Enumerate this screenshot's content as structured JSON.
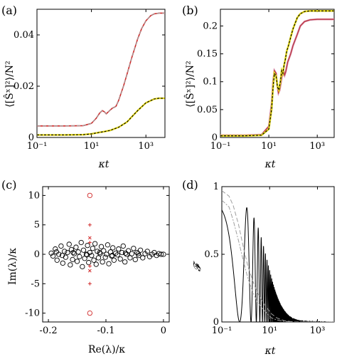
{
  "colors": {
    "red": "#d12a2a",
    "yellow": "#e3d81a",
    "black": "#000000",
    "gray": "#9e9e9e",
    "pink": "#e58aa0",
    "blue": "#5a86c9"
  },
  "chart_data": [
    {
      "id": "a",
      "type": "line",
      "panel_label": "(a)",
      "xlabel": "κt",
      "ylabel": "⟨[Ŝˣ]²⟩/N²",
      "xscale": "log",
      "xlim": [
        0.1,
        5000
      ],
      "ylim": [
        0,
        0.05
      ],
      "xticks": [
        0.1,
        10,
        1000
      ],
      "xtick_labels": [
        "10⁻¹",
        "10¹",
        "10³"
      ],
      "yticks": [
        0,
        0.02,
        0.04
      ],
      "ytick_labels": [
        "0",
        "0.02",
        "0.04"
      ],
      "series": [
        {
          "color": "red",
          "width": 1.6,
          "x": [
            0.1,
            1,
            5,
            10,
            15,
            20,
            25,
            30,
            35,
            40,
            50,
            60,
            70,
            80,
            100,
            150,
            200,
            300,
            500,
            700,
            1000,
            1500,
            2000,
            3000,
            5000
          ],
          "y": [
            0.0045,
            0.0045,
            0.0046,
            0.0055,
            0.0075,
            0.0095,
            0.0105,
            0.01,
            0.0092,
            0.0098,
            0.0108,
            0.0115,
            0.0118,
            0.0122,
            0.0145,
            0.02,
            0.0245,
            0.031,
            0.0385,
            0.0425,
            0.0455,
            0.0475,
            0.0482,
            0.0485,
            0.0485
          ]
        },
        {
          "color": "gray",
          "width": 1.1,
          "dash": "5,3",
          "x": [
            0.1,
            1,
            5,
            10,
            15,
            20,
            25,
            30,
            35,
            40,
            50,
            60,
            70,
            80,
            100,
            150,
            200,
            300,
            500,
            700,
            1000,
            1500,
            2000,
            3000,
            5000
          ],
          "y": [
            0.0045,
            0.0045,
            0.0046,
            0.0055,
            0.0075,
            0.0095,
            0.0105,
            0.01,
            0.0092,
            0.0098,
            0.0108,
            0.0115,
            0.0118,
            0.0122,
            0.0145,
            0.02,
            0.0245,
            0.031,
            0.0385,
            0.0425,
            0.0455,
            0.0475,
            0.0482,
            0.0485,
            0.0485
          ]
        },
        {
          "color": "yellow",
          "width": 2.4,
          "x": [
            0.1,
            1,
            5,
            10,
            20,
            30,
            50,
            100,
            200,
            300,
            500,
            1000,
            2000,
            3000,
            5000
          ],
          "y": [
            0.001,
            0.001,
            0.0011,
            0.0014,
            0.002,
            0.0023,
            0.0028,
            0.004,
            0.006,
            0.008,
            0.0105,
            0.0135,
            0.015,
            0.0153,
            0.0153
          ]
        },
        {
          "color": "black",
          "width": 1.1,
          "dash": "3,2",
          "x": [
            0.1,
            1,
            5,
            10,
            20,
            30,
            50,
            100,
            200,
            300,
            500,
            1000,
            2000,
            3000,
            5000
          ],
          "y": [
            0.001,
            0.001,
            0.0011,
            0.0014,
            0.002,
            0.0023,
            0.0028,
            0.004,
            0.006,
            0.008,
            0.0105,
            0.0135,
            0.015,
            0.0153,
            0.0153
          ]
        }
      ]
    },
    {
      "id": "b",
      "type": "line",
      "panel_label": "(b)",
      "xlabel": "κt",
      "ylabel": "⟨[Ŝˣ]²⟩/N²",
      "xscale": "log",
      "xlim": [
        0.1,
        5000
      ],
      "ylim": [
        0,
        0.23
      ],
      "xticks": [
        0.1,
        10,
        1000
      ],
      "xtick_labels": [
        "10⁻¹",
        "10¹",
        "10³"
      ],
      "yticks": [
        0,
        0.05,
        0.1,
        0.15,
        0.2
      ],
      "ytick_labels": [
        "0",
        "0.05",
        "0.1",
        "0.15",
        "0.2"
      ],
      "series": [
        {
          "color": "pink",
          "width": 2.6,
          "x": [
            0.1,
            1,
            5,
            10,
            13,
            15,
            17,
            20,
            22,
            25,
            28,
            32,
            36,
            40,
            45,
            50,
            60,
            80,
            100,
            150,
            200,
            300,
            500,
            1000,
            5000
          ],
          "y": [
            0.004,
            0.004,
            0.005,
            0.02,
            0.06,
            0.1,
            0.12,
            0.115,
            0.095,
            0.08,
            0.085,
            0.1,
            0.115,
            0.12,
            0.112,
            0.118,
            0.135,
            0.15,
            0.165,
            0.185,
            0.2,
            0.208,
            0.211,
            0.212,
            0.212
          ]
        },
        {
          "color": "blue",
          "width": 1.3,
          "x": [
            0.1,
            1,
            5,
            10,
            13,
            15,
            17,
            20,
            22,
            25,
            28,
            32,
            36,
            40,
            45,
            50,
            60,
            80,
            100,
            150,
            200,
            300,
            500,
            1000,
            5000
          ],
          "y": [
            0.004,
            0.004,
            0.005,
            0.02,
            0.06,
            0.1,
            0.12,
            0.115,
            0.095,
            0.08,
            0.085,
            0.1,
            0.115,
            0.12,
            0.112,
            0.118,
            0.135,
            0.15,
            0.165,
            0.185,
            0.2,
            0.208,
            0.211,
            0.212,
            0.212
          ]
        },
        {
          "color": "red",
          "width": 1.0,
          "x": [
            0.1,
            1,
            5,
            10,
            13,
            15,
            17,
            20,
            22,
            25,
            28,
            32,
            36,
            40,
            45,
            50,
            60,
            80,
            100,
            150,
            200,
            300,
            500,
            1000,
            5000
          ],
          "y": [
            0.004,
            0.004,
            0.005,
            0.02,
            0.06,
            0.1,
            0.12,
            0.115,
            0.095,
            0.08,
            0.085,
            0.1,
            0.115,
            0.12,
            0.112,
            0.118,
            0.135,
            0.15,
            0.165,
            0.185,
            0.2,
            0.208,
            0.211,
            0.212,
            0.212
          ]
        },
        {
          "color": "yellow",
          "width": 2.6,
          "x": [
            0.1,
            1,
            5,
            10,
            13,
            15,
            17,
            20,
            23,
            26,
            30,
            34,
            38,
            42,
            48,
            55,
            65,
            80,
            100,
            150,
            200,
            300,
            500,
            1000,
            5000
          ],
          "y": [
            0.003,
            0.003,
            0.004,
            0.015,
            0.05,
            0.09,
            0.115,
            0.11,
            0.09,
            0.085,
            0.1,
            0.12,
            0.115,
            0.128,
            0.14,
            0.155,
            0.165,
            0.18,
            0.195,
            0.215,
            0.222,
            0.226,
            0.227,
            0.227,
            0.227
          ]
        },
        {
          "color": "black",
          "width": 1.1,
          "dash": "3,2",
          "x": [
            0.1,
            1,
            5,
            10,
            13,
            15,
            17,
            20,
            23,
            26,
            30,
            34,
            38,
            42,
            48,
            55,
            65,
            80,
            100,
            150,
            200,
            300,
            500,
            1000,
            5000
          ],
          "y": [
            0.003,
            0.003,
            0.004,
            0.015,
            0.05,
            0.09,
            0.115,
            0.11,
            0.09,
            0.085,
            0.1,
            0.12,
            0.115,
            0.128,
            0.14,
            0.155,
            0.165,
            0.18,
            0.195,
            0.215,
            0.222,
            0.226,
            0.227,
            0.227,
            0.227
          ]
        }
      ]
    },
    {
      "id": "c",
      "type": "scatter",
      "panel_label": "(c)",
      "xlabel": "Re(λ)/κ",
      "ylabel": "Im(λ)/κ",
      "xlim": [
        -0.21,
        0.01
      ],
      "ylim": [
        -11.5,
        11.5
      ],
      "xticks": [
        -0.2,
        -0.1,
        0
      ],
      "xtick_labels": [
        "-0.2",
        "-0.1",
        "0"
      ],
      "yticks": [
        -10,
        -5,
        0,
        5,
        10
      ],
      "ytick_labels": [
        "-10",
        "-5",
        "0",
        "5",
        "10"
      ],
      "series": [
        {
          "marker": "circle-open",
          "color": "black",
          "points": [
            [
              -0.195,
              0.2
            ],
            [
              -0.192,
              -0.3
            ],
            [
              -0.188,
              0.9
            ],
            [
              -0.185,
              -1.0
            ],
            [
              -0.182,
              0.0
            ],
            [
              -0.178,
              1.4
            ],
            [
              -0.175,
              -1.5
            ],
            [
              -0.172,
              0.5
            ],
            [
              -0.17,
              -0.5
            ],
            [
              -0.167,
              0.3
            ],
            [
              -0.164,
              1.7
            ],
            [
              -0.162,
              -1.8
            ],
            [
              -0.16,
              0.8
            ],
            [
              -0.158,
              -0.9
            ],
            [
              -0.155,
              0.1
            ],
            [
              -0.152,
              1.2
            ],
            [
              -0.15,
              -1.2
            ],
            [
              -0.148,
              0.4
            ],
            [
              -0.146,
              -0.4
            ],
            [
              -0.143,
              2.0
            ],
            [
              -0.141,
              -2.1
            ],
            [
              -0.139,
              0.7
            ],
            [
              -0.137,
              -0.7
            ],
            [
              -0.134,
              0.0
            ],
            [
              -0.132,
              1.5
            ],
            [
              -0.13,
              -1.4
            ],
            [
              -0.128,
              0.3
            ],
            [
              -0.125,
              -0.2
            ],
            [
              -0.123,
              1.0
            ],
            [
              -0.121,
              -1.0
            ],
            [
              -0.119,
              1.8
            ],
            [
              -0.117,
              -1.7
            ],
            [
              -0.115,
              0.5
            ],
            [
              -0.113,
              -0.6
            ],
            [
              -0.11,
              0.1
            ],
            [
              -0.108,
              1.3
            ],
            [
              -0.106,
              -1.3
            ],
            [
              -0.104,
              0.6
            ],
            [
              -0.101,
              -0.5
            ],
            [
              -0.099,
              0.0
            ],
            [
              -0.097,
              1.6
            ],
            [
              -0.095,
              -1.6
            ],
            [
              -0.092,
              0.4
            ],
            [
              -0.09,
              -0.3
            ],
            [
              -0.088,
              1.1
            ],
            [
              -0.086,
              -1.0
            ],
            [
              -0.083,
              0.2
            ],
            [
              -0.08,
              -0.1
            ],
            [
              -0.078,
              0.9
            ],
            [
              -0.075,
              -0.8
            ],
            [
              -0.072,
              0.3
            ],
            [
              -0.07,
              1.4
            ],
            [
              -0.067,
              -1.3
            ],
            [
              -0.064,
              0.0
            ],
            [
              -0.061,
              0.6
            ],
            [
              -0.058,
              -0.6
            ],
            [
              -0.055,
              0.1
            ],
            [
              -0.052,
              1.0
            ],
            [
              -0.049,
              -0.9
            ],
            [
              -0.046,
              0.3
            ],
            [
              -0.043,
              -0.2
            ],
            [
              -0.04,
              0.7
            ],
            [
              -0.036,
              -0.6
            ],
            [
              -0.032,
              0.1
            ],
            [
              -0.028,
              0.5
            ],
            [
              -0.024,
              -0.4
            ],
            [
              -0.02,
              0.0
            ],
            [
              -0.016,
              0.3
            ],
            [
              -0.012,
              -0.2
            ],
            [
              -0.008,
              0.1
            ],
            [
              -0.004,
              0.0
            ],
            [
              0.0,
              0.0
            ],
            [
              -0.186,
              0.4
            ],
            [
              -0.176,
              -0.2
            ],
            [
              -0.157,
              0.3
            ],
            [
              -0.133,
              -0.1
            ],
            [
              -0.111,
              0.3
            ],
            [
              -0.089,
              -0.2
            ],
            [
              -0.066,
              0.2
            ],
            [
              -0.044,
              0.1
            ]
          ]
        },
        {
          "marker": "circle-open",
          "color": "red",
          "points": [
            [
              -0.128,
              10.0
            ],
            [
              -0.128,
              -10.0
            ]
          ]
        },
        {
          "marker": "plus",
          "color": "red",
          "points": [
            [
              -0.128,
              5.0
            ],
            [
              -0.128,
              -5.0
            ],
            [
              -0.128,
              2.0
            ],
            [
              -0.128,
              -2.0
            ]
          ]
        },
        {
          "marker": "x",
          "color": "red",
          "points": [
            [
              -0.128,
              2.8
            ],
            [
              -0.128,
              -2.8
            ]
          ]
        }
      ]
    },
    {
      "id": "d",
      "type": "line",
      "panel_label": "(d)",
      "xlabel": "κt",
      "ylabel": "𝓕",
      "xscale": "log",
      "xlim": [
        0.1,
        5000
      ],
      "ylim": [
        0,
        1
      ],
      "xticks": [
        0.1,
        10,
        1000
      ],
      "xtick_labels": [
        "10⁻¹",
        "10¹",
        "10³"
      ],
      "yticks": [
        0,
        0.5,
        1
      ],
      "ytick_labels": [
        "0",
        "0.5",
        "1"
      ],
      "series": [
        {
          "color": "black",
          "width": 1.0,
          "kind": "oscillation",
          "params": {
            "period_log": 0.22,
            "t0": 0.1,
            "decay_center": 8,
            "decay_width": 0.9,
            "base": 0.0
          }
        },
        {
          "color": "gray",
          "width": 1.0,
          "dash": "6,3",
          "x": [
            0.1,
            0.2,
            0.3,
            0.5,
            0.8,
            1.2,
            2,
            3,
            5,
            8,
            12,
            20,
            40,
            100,
            1000,
            5000
          ],
          "y": [
            0.97,
            0.93,
            0.86,
            0.72,
            0.55,
            0.42,
            0.3,
            0.22,
            0.15,
            0.1,
            0.06,
            0.03,
            0.01,
            0.0,
            0.0,
            0.0
          ]
        },
        {
          "color": "gray",
          "width": 1.0,
          "dash": "6,2,2,2",
          "x": [
            0.1,
            0.2,
            0.3,
            0.5,
            0.8,
            1.2,
            2,
            3,
            5,
            8,
            12,
            20,
            40,
            100,
            1000,
            5000
          ],
          "y": [
            0.9,
            0.85,
            0.75,
            0.6,
            0.45,
            0.33,
            0.22,
            0.15,
            0.1,
            0.06,
            0.03,
            0.015,
            0.005,
            0.0,
            0.0,
            0.0
          ]
        }
      ]
    }
  ]
}
